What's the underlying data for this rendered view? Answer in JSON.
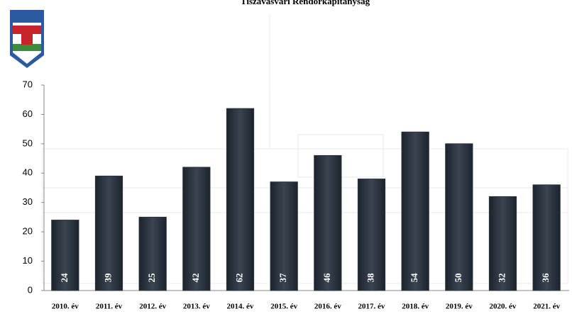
{
  "chart_data": {
    "type": "bar",
    "title": "Tiszavasvári Rendőrkapitányság",
    "categories": [
      "2010. év",
      "2011. év",
      "2012. év",
      "2013. év",
      "2014. év",
      "2015. év",
      "2016. év",
      "2017. év",
      "2018. év",
      "2019. év",
      "2020. év",
      "2021. év"
    ],
    "values": [
      24,
      39,
      25,
      42,
      62,
      37,
      46,
      38,
      54,
      50,
      32,
      36
    ],
    "color": "#2b3440",
    "ylim": [
      0,
      70
    ],
    "yticks": [
      0,
      10,
      20,
      30,
      40,
      50,
      60,
      70
    ]
  }
}
